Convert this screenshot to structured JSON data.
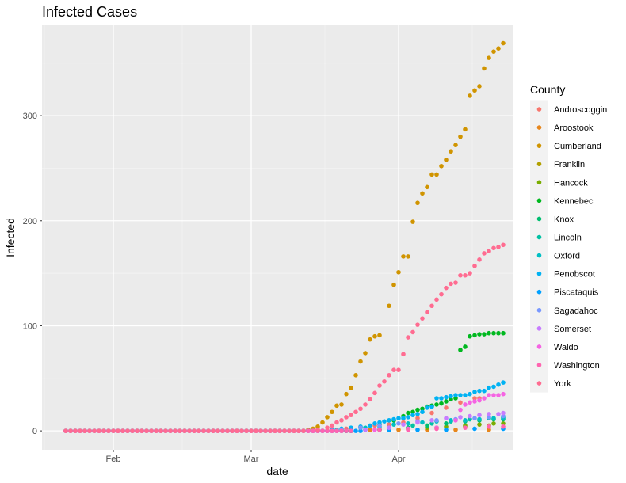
{
  "chart_data": {
    "type": "scatter",
    "title": "Infected Cases",
    "xlabel": "date",
    "ylabel": "Infected",
    "x_start": "2020-01-22",
    "x_end": "2020-04-20",
    "xlim": [
      "2020-01-17",
      "2020-04-25"
    ],
    "ylim": [
      -18,
      386
    ],
    "x_ticks": [
      {
        "date": "2020-02-01",
        "label": "Feb"
      },
      {
        "date": "2020-03-01",
        "label": "Mar"
      },
      {
        "date": "2020-04-01",
        "label": "Apr"
      }
    ],
    "y_ticks": [
      0,
      100,
      200,
      300
    ],
    "grid": true,
    "legend": {
      "title": "County",
      "position": "right"
    },
    "series": [
      {
        "name": "Androscoggin",
        "color": "#F8766D",
        "points": [
          [
            "2020-03-12",
            0
          ],
          [
            "2020-03-15",
            1
          ],
          [
            "2020-03-18",
            1
          ],
          [
            "2020-03-21",
            2
          ],
          [
            "2020-03-24",
            3
          ],
          [
            "2020-03-27",
            5
          ],
          [
            "2020-03-30",
            6
          ],
          [
            "2020-04-02",
            8
          ],
          [
            "2020-04-05",
            12
          ],
          [
            "2020-04-08",
            17
          ],
          [
            "2020-04-11",
            22
          ],
          [
            "2020-04-14",
            27
          ],
          [
            "2020-04-17",
            31
          ],
          [
            "2020-04-18",
            31
          ]
        ]
      },
      {
        "name": "Aroostook",
        "color": "#E7861B",
        "points": [
          [
            "2020-03-20",
            0
          ],
          [
            "2020-03-26",
            1
          ],
          [
            "2020-04-01",
            1
          ],
          [
            "2020-04-07",
            1
          ],
          [
            "2020-04-13",
            1
          ],
          [
            "2020-04-20",
            1
          ]
        ]
      },
      {
        "name": "Cumberland",
        "color": "#D09400",
        "points": [
          [
            "2020-03-12",
            0
          ],
          [
            "2020-03-13",
            1
          ],
          [
            "2020-03-14",
            2
          ],
          [
            "2020-03-15",
            4
          ],
          [
            "2020-03-16",
            8
          ],
          [
            "2020-03-17",
            13
          ],
          [
            "2020-03-18",
            18
          ],
          [
            "2020-03-19",
            24
          ],
          [
            "2020-03-20",
            25
          ],
          [
            "2020-03-21",
            35
          ],
          [
            "2020-03-22",
            41
          ],
          [
            "2020-03-23",
            53
          ],
          [
            "2020-03-24",
            66
          ],
          [
            "2020-03-25",
            74
          ],
          [
            "2020-03-26",
            87
          ],
          [
            "2020-03-27",
            90
          ],
          [
            "2020-03-28",
            91
          ],
          [
            "2020-03-30",
            119
          ],
          [
            "2020-03-31",
            139
          ],
          [
            "2020-04-01",
            151
          ],
          [
            "2020-04-02",
            166
          ],
          [
            "2020-04-03",
            166
          ],
          [
            "2020-04-04",
            199
          ],
          [
            "2020-04-05",
            217
          ],
          [
            "2020-04-06",
            226
          ],
          [
            "2020-04-07",
            232
          ],
          [
            "2020-04-08",
            244
          ],
          [
            "2020-04-09",
            244
          ],
          [
            "2020-04-10",
            252
          ],
          [
            "2020-04-11",
            258
          ],
          [
            "2020-04-12",
            266
          ],
          [
            "2020-04-13",
            272
          ],
          [
            "2020-04-14",
            280
          ],
          [
            "2020-04-15",
            287
          ],
          [
            "2020-04-16",
            319
          ],
          [
            "2020-04-17",
            324
          ],
          [
            "2020-04-18",
            328
          ],
          [
            "2020-04-19",
            345
          ],
          [
            "2020-04-20",
            355
          ],
          [
            "2020-04-21",
            361
          ],
          [
            "2020-04-22",
            364
          ],
          [
            "2020-04-23",
            369
          ]
        ]
      },
      {
        "name": "Franklin",
        "color": "#B2A000",
        "points": [
          [
            "2020-03-22",
            0
          ],
          [
            "2020-03-28",
            1
          ],
          [
            "2020-04-03",
            2
          ],
          [
            "2020-04-09",
            3
          ],
          [
            "2020-04-15",
            4
          ],
          [
            "2020-04-20",
            5
          ]
        ]
      },
      {
        "name": "Hancock",
        "color": "#7AAD00",
        "points": [
          [
            "2020-03-22",
            0
          ],
          [
            "2020-03-28",
            1
          ],
          [
            "2020-04-03",
            2
          ],
          [
            "2020-04-07",
            3
          ],
          [
            "2020-04-11",
            4
          ],
          [
            "2020-04-15",
            5
          ],
          [
            "2020-04-18",
            6
          ],
          [
            "2020-04-21",
            7
          ],
          [
            "2020-04-23",
            7
          ]
        ]
      },
      {
        "name": "Kennebec",
        "color": "#00B81F",
        "points": [
          [
            "2020-03-16",
            0
          ],
          [
            "2020-03-20",
            1
          ],
          [
            "2020-03-24",
            3
          ],
          [
            "2020-03-28",
            6
          ],
          [
            "2020-03-31",
            10
          ],
          [
            "2020-04-02",
            14
          ],
          [
            "2020-04-03",
            17
          ],
          [
            "2020-04-04",
            18
          ],
          [
            "2020-04-05",
            20
          ],
          [
            "2020-04-06",
            21
          ],
          [
            "2020-04-07",
            23
          ],
          [
            "2020-04-08",
            24
          ],
          [
            "2020-04-09",
            25
          ],
          [
            "2020-04-10",
            26
          ],
          [
            "2020-04-11",
            28
          ],
          [
            "2020-04-12",
            30
          ],
          [
            "2020-04-13",
            31
          ],
          [
            "2020-04-14",
            77
          ],
          [
            "2020-04-15",
            80
          ],
          [
            "2020-04-16",
            90
          ],
          [
            "2020-04-17",
            91
          ],
          [
            "2020-04-18",
            92
          ],
          [
            "2020-04-19",
            92
          ],
          [
            "2020-04-20",
            93
          ],
          [
            "2020-04-21",
            93
          ],
          [
            "2020-04-22",
            93
          ],
          [
            "2020-04-23",
            93
          ]
        ]
      },
      {
        "name": "Knox",
        "color": "#00BE70",
        "points": [
          [
            "2020-03-22",
            0
          ],
          [
            "2020-03-28",
            1
          ],
          [
            "2020-04-03",
            3
          ],
          [
            "2020-04-07",
            5
          ],
          [
            "2020-04-11",
            7
          ],
          [
            "2020-04-15",
            9
          ],
          [
            "2020-04-18",
            10
          ],
          [
            "2020-04-21",
            11
          ],
          [
            "2020-04-23",
            11
          ]
        ]
      },
      {
        "name": "Lincoln",
        "color": "#00C1A3",
        "points": [
          [
            "2020-03-20",
            0
          ],
          [
            "2020-03-25",
            1
          ],
          [
            "2020-03-30",
            3
          ],
          [
            "2020-04-04",
            5
          ],
          [
            "2020-04-08",
            7
          ],
          [
            "2020-04-12",
            9
          ],
          [
            "2020-04-16",
            11
          ],
          [
            "2020-04-20",
            12
          ],
          [
            "2020-04-23",
            13
          ]
        ]
      },
      {
        "name": "Oxford",
        "color": "#00BFC4",
        "points": [
          [
            "2020-03-16",
            0
          ],
          [
            "2020-03-19",
            1
          ],
          [
            "2020-03-22",
            2
          ],
          [
            "2020-03-25",
            3
          ],
          [
            "2020-03-28",
            4
          ],
          [
            "2020-03-31",
            6
          ],
          [
            "2020-04-03",
            7
          ],
          [
            "2020-04-06",
            8
          ],
          [
            "2020-04-09",
            9
          ],
          [
            "2020-04-12",
            10
          ],
          [
            "2020-04-15",
            10
          ],
          [
            "2020-04-18",
            11
          ],
          [
            "2020-04-21",
            12
          ],
          [
            "2020-04-23",
            12
          ]
        ]
      },
      {
        "name": "Penobscot",
        "color": "#00B2F3",
        "points": [
          [
            "2020-03-16",
            0
          ],
          [
            "2020-03-18",
            1
          ],
          [
            "2020-03-20",
            2
          ],
          [
            "2020-03-22",
            3
          ],
          [
            "2020-03-24",
            4
          ],
          [
            "2020-03-26",
            5
          ],
          [
            "2020-03-27",
            7
          ],
          [
            "2020-03-28",
            8
          ],
          [
            "2020-03-29",
            9
          ],
          [
            "2020-03-30",
            10
          ],
          [
            "2020-03-31",
            11
          ],
          [
            "2020-04-01",
            12
          ],
          [
            "2020-04-02",
            12
          ],
          [
            "2020-04-03",
            13
          ],
          [
            "2020-04-04",
            15
          ],
          [
            "2020-04-05",
            16
          ],
          [
            "2020-04-06",
            18
          ],
          [
            "2020-04-07",
            22
          ],
          [
            "2020-04-08",
            23
          ],
          [
            "2020-04-09",
            31
          ],
          [
            "2020-04-10",
            31
          ],
          [
            "2020-04-11",
            32
          ],
          [
            "2020-04-12",
            33
          ],
          [
            "2020-04-13",
            34
          ],
          [
            "2020-04-14",
            34
          ],
          [
            "2020-04-15",
            34
          ],
          [
            "2020-04-16",
            35
          ],
          [
            "2020-04-17",
            37
          ],
          [
            "2020-04-18",
            38
          ],
          [
            "2020-04-19",
            38
          ],
          [
            "2020-04-20",
            41
          ],
          [
            "2020-04-21",
            42
          ],
          [
            "2020-04-22",
            44
          ],
          [
            "2020-04-23",
            46
          ]
        ]
      },
      {
        "name": "Piscataquis",
        "color": "#00A0FF",
        "points": [
          [
            "2020-03-24",
            0
          ],
          [
            "2020-03-30",
            1
          ],
          [
            "2020-04-05",
            1
          ],
          [
            "2020-04-11",
            1
          ],
          [
            "2020-04-17",
            2
          ],
          [
            "2020-04-23",
            2
          ]
        ]
      },
      {
        "name": "Sagadahoc",
        "color": "#7998FF",
        "points": [
          [
            "2020-03-16",
            0
          ],
          [
            "2020-03-20",
            1
          ],
          [
            "2020-03-24",
            3
          ],
          [
            "2020-03-28",
            5
          ],
          [
            "2020-04-01",
            7
          ],
          [
            "2020-04-05",
            9
          ],
          [
            "2020-04-09",
            10
          ],
          [
            "2020-04-13",
            11
          ],
          [
            "2020-04-17",
            12
          ],
          [
            "2020-04-20",
            13
          ],
          [
            "2020-04-23",
            14
          ]
        ]
      },
      {
        "name": "Somerset",
        "color": "#C77CFF",
        "points": [
          [
            "2020-03-20",
            0
          ],
          [
            "2020-03-25",
            1
          ],
          [
            "2020-03-30",
            3
          ],
          [
            "2020-04-02",
            6
          ],
          [
            "2020-04-05",
            8
          ],
          [
            "2020-04-08",
            10
          ],
          [
            "2020-04-11",
            12
          ],
          [
            "2020-04-14",
            13
          ],
          [
            "2020-04-16",
            14
          ],
          [
            "2020-04-18",
            15
          ],
          [
            "2020-04-20",
            16
          ],
          [
            "2020-04-22",
            16
          ],
          [
            "2020-04-23",
            17
          ]
        ]
      },
      {
        "name": "Waldo",
        "color": "#F564E3",
        "points": [
          [
            "2020-03-20",
            0
          ],
          [
            "2020-03-27",
            1
          ],
          [
            "2020-04-03",
            2
          ],
          [
            "2020-04-09",
            3
          ],
          [
            "2020-04-13",
            10
          ],
          [
            "2020-04-14",
            20
          ],
          [
            "2020-04-15",
            25
          ],
          [
            "2020-04-16",
            27
          ],
          [
            "2020-04-17",
            28
          ],
          [
            "2020-04-18",
            29
          ],
          [
            "2020-04-19",
            31
          ],
          [
            "2020-04-20",
            34
          ],
          [
            "2020-04-21",
            34
          ],
          [
            "2020-04-22",
            34
          ],
          [
            "2020-04-23",
            35
          ]
        ]
      },
      {
        "name": "Washington",
        "color": "#FF64B0",
        "points": [
          [
            "2020-03-22",
            0
          ],
          [
            "2020-03-28",
            1
          ],
          [
            "2020-04-03",
            1
          ],
          [
            "2020-04-09",
            2
          ],
          [
            "2020-04-15",
            3
          ],
          [
            "2020-04-20",
            4
          ],
          [
            "2020-04-23",
            4
          ]
        ]
      },
      {
        "name": "York",
        "color": "#FF6C91",
        "points": [
          [
            "2020-03-12",
            0
          ],
          [
            "2020-03-15",
            1
          ],
          [
            "2020-03-17",
            3
          ],
          [
            "2020-03-18",
            5
          ],
          [
            "2020-03-19",
            8
          ],
          [
            "2020-03-20",
            10
          ],
          [
            "2020-03-21",
            13
          ],
          [
            "2020-03-22",
            15
          ],
          [
            "2020-03-23",
            18
          ],
          [
            "2020-03-24",
            21
          ],
          [
            "2020-03-25",
            25
          ],
          [
            "2020-03-26",
            30
          ],
          [
            "2020-03-27",
            36
          ],
          [
            "2020-03-28",
            43
          ],
          [
            "2020-03-29",
            47
          ],
          [
            "2020-03-30",
            53
          ],
          [
            "2020-03-31",
            58
          ],
          [
            "2020-04-01",
            58
          ],
          [
            "2020-04-02",
            73
          ],
          [
            "2020-04-03",
            89
          ],
          [
            "2020-04-04",
            94
          ],
          [
            "2020-04-05",
            101
          ],
          [
            "2020-04-06",
            107
          ],
          [
            "2020-04-07",
            113
          ],
          [
            "2020-04-08",
            119
          ],
          [
            "2020-04-09",
            125
          ],
          [
            "2020-04-10",
            130
          ],
          [
            "2020-04-11",
            136
          ],
          [
            "2020-04-12",
            140
          ],
          [
            "2020-04-13",
            141
          ],
          [
            "2020-04-14",
            148
          ],
          [
            "2020-04-15",
            148
          ],
          [
            "2020-04-16",
            150
          ],
          [
            "2020-04-17",
            157
          ],
          [
            "2020-04-18",
            163
          ],
          [
            "2020-04-19",
            169
          ],
          [
            "2020-04-20",
            171
          ],
          [
            "2020-04-21",
            174
          ],
          [
            "2020-04-22",
            175
          ],
          [
            "2020-04-23",
            177
          ]
        ]
      }
    ]
  }
}
